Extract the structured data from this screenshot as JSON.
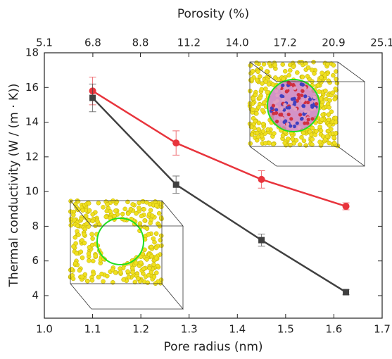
{
  "chart_data": {
    "type": "line",
    "xlabel": "Pore radius (nm)",
    "ylabel": "Thermal conductivity (W / (m · K))",
    "x2label": "Porosity (%)",
    "xlim": [
      1.0,
      1.7
    ],
    "xticks": [
      {
        "value": 1.0,
        "label": "1.0"
      },
      1.1,
      1.2,
      1.3,
      1.4,
      1.5,
      1.6,
      1.7
    ],
    "x2lim": [
      5.1,
      25.1
    ],
    "x2scale": "cube",
    "x2ticks": [
      5.1,
      6.8,
      8.8,
      11.2,
      {
        "value": 14.0,
        "label": "14.0"
      },
      17.2,
      20.9,
      25.1
    ],
    "ylim": [
      2.7,
      18
    ],
    "yticks": [
      4,
      6,
      8,
      10,
      12,
      14,
      16,
      18
    ],
    "x": [
      1.1,
      1.273,
      1.45,
      1.625
    ],
    "series": [
      {
        "color": "#e8343c",
        "marker": "circle",
        "values": [
          15.8,
          12.8,
          10.7,
          9.15
        ],
        "errors": [
          0.8,
          0.7,
          0.5,
          0.2
        ]
      },
      {
        "color": "#404040",
        "marker": "square",
        "values": [
          15.4,
          10.4,
          7.2,
          4.2
        ],
        "errors": [
          0.8,
          0.5,
          0.35,
          0.15
        ]
      }
    ]
  }
}
